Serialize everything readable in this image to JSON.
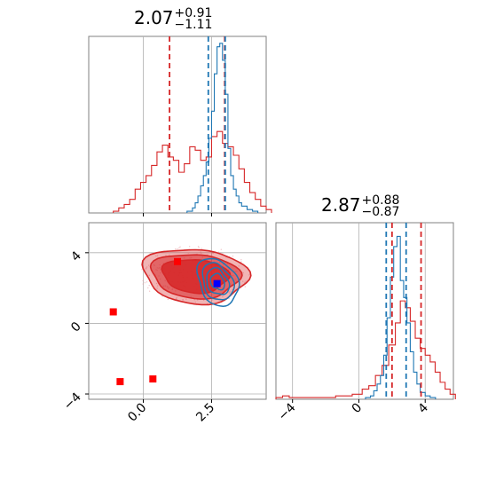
{
  "chart_data": {
    "type": "corner",
    "colors": {
      "red": "#d62728",
      "blue": "#1f77b4",
      "marker_red": "#ff0000",
      "marker_blue": "#0000ff",
      "grid": "#b0b0b0",
      "axis": "#808080"
    },
    "panels": [
      {
        "id": "hist_x",
        "type": "histogram",
        "title": {
          "value": "2.07",
          "plus": "+0.91",
          "minus": "−1.11"
        },
        "xlim": [
          -2.0,
          4.5
        ],
        "red_quantiles": [
          0.96,
          2.98
        ],
        "blue_quantiles": [
          2.38,
          3.0
        ],
        "red_series": [
          [
            -1.1,
            0.01
          ],
          [
            -0.9,
            0.03
          ],
          [
            -0.7,
            0.05
          ],
          [
            -0.5,
            0.08
          ],
          [
            -0.3,
            0.14
          ],
          [
            -0.1,
            0.18
          ],
          [
            0.1,
            0.22
          ],
          [
            0.3,
            0.28
          ],
          [
            0.5,
            0.36
          ],
          [
            0.7,
            0.4
          ],
          [
            0.9,
            0.33
          ],
          [
            1.1,
            0.31
          ],
          [
            1.3,
            0.24
          ],
          [
            1.5,
            0.29
          ],
          [
            1.7,
            0.39
          ],
          [
            1.9,
            0.37
          ],
          [
            2.1,
            0.31
          ],
          [
            2.3,
            0.33
          ],
          [
            2.5,
            0.45
          ],
          [
            2.7,
            0.48
          ],
          [
            2.9,
            0.41
          ],
          [
            3.1,
            0.39
          ],
          [
            3.3,
            0.34
          ],
          [
            3.5,
            0.26
          ],
          [
            3.7,
            0.18
          ],
          [
            3.9,
            0.12
          ],
          [
            4.1,
            0.08
          ],
          [
            4.3,
            0.04
          ],
          [
            4.5,
            0.02
          ]
        ],
        "blue_series": [
          [
            1.6,
            0.01
          ],
          [
            1.8,
            0.03
          ],
          [
            1.9,
            0.06
          ],
          [
            2.0,
            0.1
          ],
          [
            2.1,
            0.16
          ],
          [
            2.2,
            0.22
          ],
          [
            2.3,
            0.3
          ],
          [
            2.4,
            0.44
          ],
          [
            2.5,
            0.6
          ],
          [
            2.6,
            0.82
          ],
          [
            2.7,
            0.98
          ],
          [
            2.8,
            1.0
          ],
          [
            2.9,
            0.9
          ],
          [
            3.0,
            0.7
          ],
          [
            3.1,
            0.38
          ],
          [
            3.2,
            0.22
          ],
          [
            3.3,
            0.14
          ],
          [
            3.4,
            0.1
          ],
          [
            3.5,
            0.06
          ],
          [
            3.6,
            0.04
          ],
          [
            3.8,
            0.02
          ],
          [
            4.0,
            0.01
          ]
        ]
      },
      {
        "id": "scatter_2d",
        "type": "contour",
        "xlim": [
          -2.0,
          4.5
        ],
        "ylim": [
          -4.3,
          5.7
        ],
        "red_markers": [
          [
            -1.1,
            0.65
          ],
          [
            -0.85,
            -3.3
          ],
          [
            0.35,
            -3.15
          ],
          [
            1.25,
            3.5
          ]
        ],
        "blue_markers": [
          [
            2.7,
            2.25
          ]
        ],
        "red_center": [
          1.9,
          2.7
        ],
        "blue_center": [
          2.72,
          2.35
        ]
      },
      {
        "id": "hist_y",
        "type": "histogram",
        "title": {
          "value": "2.87",
          "plus": "+0.88",
          "minus": "−0.87"
        },
        "xlim": [
          -5.0,
          5.7
        ],
        "red_quantiles": [
          2.0,
          3.75
        ],
        "blue_quantiles": [
          1.65,
          2.85
        ],
        "red_series": [
          [
            -5.0,
            0.01
          ],
          [
            -4.6,
            0.02
          ],
          [
            -4.2,
            0.01
          ],
          [
            -3.4,
            0.01
          ],
          [
            -2.4,
            0.01
          ],
          [
            -1.4,
            0.02
          ],
          [
            -0.4,
            0.03
          ],
          [
            0.2,
            0.06
          ],
          [
            0.6,
            0.08
          ],
          [
            1.0,
            0.14
          ],
          [
            1.4,
            0.2
          ],
          [
            1.8,
            0.32
          ],
          [
            2.2,
            0.45
          ],
          [
            2.5,
            0.58
          ],
          [
            2.8,
            0.54
          ],
          [
            3.1,
            0.46
          ],
          [
            3.4,
            0.36
          ],
          [
            3.7,
            0.3
          ],
          [
            4.0,
            0.26
          ],
          [
            4.3,
            0.22
          ],
          [
            4.6,
            0.16
          ],
          [
            4.9,
            0.1
          ],
          [
            5.2,
            0.06
          ],
          [
            5.5,
            0.03
          ]
        ],
        "blue_series": [
          [
            0.4,
            0.01
          ],
          [
            0.7,
            0.02
          ],
          [
            0.9,
            0.05
          ],
          [
            1.1,
            0.09
          ],
          [
            1.3,
            0.14
          ],
          [
            1.5,
            0.26
          ],
          [
            1.7,
            0.48
          ],
          [
            1.9,
            0.72
          ],
          [
            2.1,
            0.9
          ],
          [
            2.3,
            0.96
          ],
          [
            2.5,
            0.7
          ],
          [
            2.7,
            0.6
          ],
          [
            2.9,
            0.45
          ],
          [
            3.1,
            0.28
          ],
          [
            3.3,
            0.16
          ],
          [
            3.5,
            0.09
          ],
          [
            3.7,
            0.04
          ],
          [
            4.0,
            0.02
          ],
          [
            4.3,
            0.01
          ]
        ]
      }
    ],
    "tick_labels": {
      "scatter_x": [
        "0.0",
        "2.5"
      ],
      "scatter_y": [
        "−4",
        "0",
        "4"
      ],
      "hist_y_x": [
        "−4",
        "0",
        "4"
      ]
    }
  }
}
